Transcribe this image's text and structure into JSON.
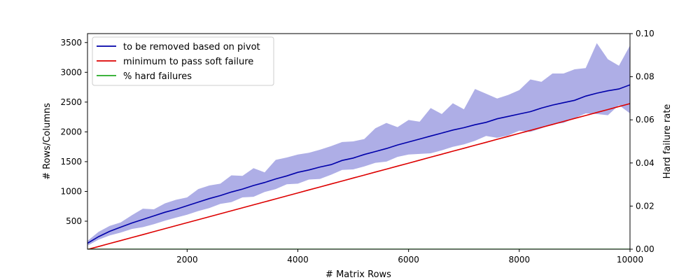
{
  "chart_data": {
    "type": "line",
    "xlabel": "# Matrix Rows",
    "ylabel": "# Rows/Columns",
    "y2label": "Hard failure rate",
    "xlim": [
      200,
      10000
    ],
    "ylim": [
      30,
      3650
    ],
    "y2lim": [
      0.0,
      0.1
    ],
    "x_ticks": [
      2000,
      4000,
      6000,
      8000,
      10000
    ],
    "y_ticks": [
      500,
      1000,
      1500,
      2000,
      2500,
      3000,
      3500
    ],
    "y2_ticks": [
      "0.00",
      "0.02",
      "0.04",
      "0.06",
      "0.08",
      "0.10"
    ],
    "grid": false,
    "legend_position": "top-left",
    "x": [
      200,
      400,
      600,
      800,
      1000,
      1200,
      1400,
      1600,
      1800,
      2000,
      2200,
      2400,
      2600,
      2800,
      3000,
      3200,
      3400,
      3600,
      3800,
      4000,
      4200,
      4400,
      4600,
      4800,
      5000,
      5200,
      5400,
      5600,
      5800,
      6000,
      6200,
      6400,
      6600,
      6800,
      7000,
      7200,
      7400,
      7600,
      7800,
      8000,
      8200,
      8400,
      8600,
      8800,
      9000,
      9200,
      9400,
      9600,
      9800,
      10000
    ],
    "series": [
      {
        "name": "to be removed based on pivot",
        "color": "#0000aa",
        "values": [
          130,
          240,
          330,
          400,
          470,
          530,
          590,
          650,
          700,
          760,
          820,
          880,
          930,
          990,
          1040,
          1100,
          1150,
          1210,
          1260,
          1320,
          1360,
          1410,
          1450,
          1520,
          1560,
          1620,
          1670,
          1720,
          1780,
          1830,
          1880,
          1930,
          1980,
          2030,
          2070,
          2120,
          2160,
          2220,
          2260,
          2300,
          2340,
          2400,
          2450,
          2490,
          2530,
          2600,
          2650,
          2690,
          2720,
          2790
        ]
      },
      {
        "name": "minimum to pass soft failure",
        "color": "#dd0000",
        "values": [
          25,
          75,
          125,
          175,
          225,
          275,
          325,
          375,
          425,
          475,
          525,
          575,
          625,
          675,
          725,
          775,
          825,
          875,
          925,
          975,
          1025,
          1075,
          1125,
          1175,
          1225,
          1275,
          1325,
          1375,
          1425,
          1475,
          1525,
          1575,
          1625,
          1675,
          1725,
          1775,
          1825,
          1875,
          1925,
          1975,
          2025,
          2075,
          2125,
          2175,
          2225,
          2275,
          2325,
          2375,
          2425,
          2475
        ]
      },
      {
        "name": "% hard failures",
        "color": "#22aa22",
        "axis": "right",
        "values": [
          0,
          0,
          0,
          0,
          0,
          0,
          0,
          0,
          0,
          0,
          0,
          0,
          0,
          0,
          0,
          0,
          0,
          0,
          0,
          0,
          0,
          0,
          0,
          0,
          0,
          0,
          0,
          0,
          0,
          0,
          0,
          0,
          0,
          0,
          0,
          0,
          0,
          0,
          0,
          0,
          0,
          0,
          0,
          0,
          0,
          0,
          0,
          0,
          0,
          0
        ]
      }
    ],
    "band": {
      "color": "#aeaee6",
      "upper": [
        170,
        320,
        420,
        480,
        600,
        710,
        700,
        800,
        860,
        900,
        1040,
        1100,
        1130,
        1270,
        1260,
        1390,
        1320,
        1530,
        1570,
        1620,
        1650,
        1700,
        1760,
        1830,
        1840,
        1880,
        2060,
        2150,
        2080,
        2200,
        2170,
        2400,
        2300,
        2480,
        2380,
        2720,
        2640,
        2560,
        2620,
        2700,
        2880,
        2840,
        2980,
        2980,
        3050,
        3070,
        3490,
        3220,
        3110,
        3450
      ],
      "lower": [
        90,
        190,
        260,
        310,
        370,
        400,
        450,
        510,
        560,
        610,
        670,
        720,
        790,
        820,
        900,
        910,
        990,
        1040,
        1120,
        1130,
        1200,
        1210,
        1280,
        1360,
        1370,
        1420,
        1480,
        1500,
        1580,
        1620,
        1630,
        1640,
        1690,
        1750,
        1790,
        1850,
        1930,
        1900,
        1940,
        2020,
        2000,
        2060,
        2130,
        2150,
        2230,
        2310,
        2300,
        2280,
        2450,
        2310
      ]
    }
  }
}
